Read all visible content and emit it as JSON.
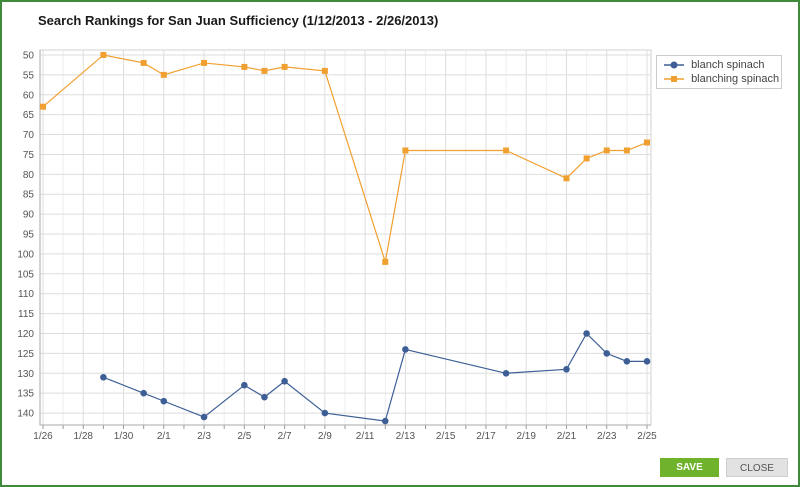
{
  "chart_data": {
    "type": "line",
    "title": "Search Rankings for San Juan Sufficiency (1/12/2013 - 2/26/2013)",
    "x_tick_labels": [
      "1/26",
      "1/28",
      "1/30",
      "2/1",
      "2/3",
      "2/5",
      "2/7",
      "2/9",
      "2/11",
      "2/13",
      "2/15",
      "2/17",
      "2/19",
      "2/21",
      "2/23",
      "2/25"
    ],
    "xlim": [
      "2013-01-26",
      "2013-02-25"
    ],
    "y_ticks": [
      50,
      55,
      60,
      65,
      70,
      75,
      80,
      85,
      90,
      95,
      100,
      105,
      110,
      115,
      120,
      125,
      130,
      135,
      140
    ],
    "ylim": [
      49,
      143
    ],
    "y_inverted": true,
    "grid": true,
    "legend_position": "top-right",
    "series": [
      {
        "name": "blanch spinach",
        "color": "#3d5f96",
        "marker": "circle",
        "points": [
          {
            "x": "2013-01-29",
            "y": 131
          },
          {
            "x": "2013-01-31",
            "y": 135
          },
          {
            "x": "2013-02-01",
            "y": 137
          },
          {
            "x": "2013-02-03",
            "y": 141
          },
          {
            "x": "2013-02-05",
            "y": 133
          },
          {
            "x": "2013-02-06",
            "y": 136
          },
          {
            "x": "2013-02-07",
            "y": 132
          },
          {
            "x": "2013-02-09",
            "y": 140
          },
          {
            "x": "2013-02-12",
            "y": 142
          },
          {
            "x": "2013-02-13",
            "y": 124
          },
          {
            "x": "2013-02-18",
            "y": 130
          },
          {
            "x": "2013-02-21",
            "y": 129
          },
          {
            "x": "2013-02-22",
            "y": 120
          },
          {
            "x": "2013-02-23",
            "y": 125
          },
          {
            "x": "2013-02-24",
            "y": 127
          },
          {
            "x": "2013-02-25",
            "y": 127
          }
        ]
      },
      {
        "name": "blanching spinach",
        "color": "#f0a030",
        "marker": "square",
        "points": [
          {
            "x": "2013-01-26",
            "y": 63
          },
          {
            "x": "2013-01-29",
            "y": 50
          },
          {
            "x": "2013-01-31",
            "y": 52
          },
          {
            "x": "2013-02-01",
            "y": 55
          },
          {
            "x": "2013-02-03",
            "y": 52
          },
          {
            "x": "2013-02-05",
            "y": 53
          },
          {
            "x": "2013-02-06",
            "y": 54
          },
          {
            "x": "2013-02-07",
            "y": 53
          },
          {
            "x": "2013-02-09",
            "y": 54
          },
          {
            "x": "2013-02-12",
            "y": 102
          },
          {
            "x": "2013-02-13",
            "y": 74
          },
          {
            "x": "2013-02-18",
            "y": 74
          },
          {
            "x": "2013-02-21",
            "y": 81
          },
          {
            "x": "2013-02-22",
            "y": 76
          },
          {
            "x": "2013-02-23",
            "y": 74
          },
          {
            "x": "2013-02-24",
            "y": 74
          },
          {
            "x": "2013-02-25",
            "y": 72
          }
        ]
      }
    ]
  },
  "buttons": {
    "save_label": "SAVE",
    "close_label": "CLOSE"
  }
}
